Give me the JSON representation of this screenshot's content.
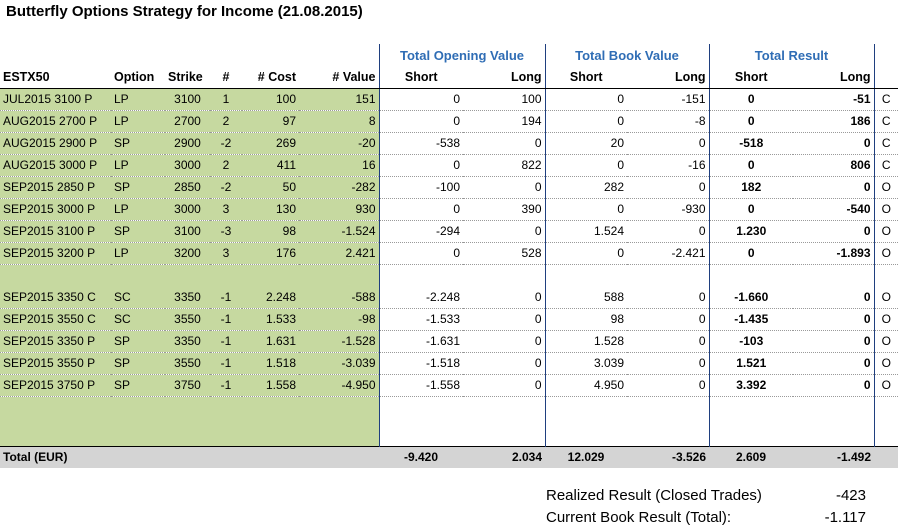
{
  "title": "Butterfly Options Strategy for Income (21.08.2015)",
  "groups": {
    "opening": "Total Opening Value",
    "book": "Total Book Value",
    "result": "Total Result"
  },
  "headers": {
    "instrument": "ESTX50",
    "option": "Option",
    "strike": "Strike",
    "count": "#",
    "cost": "# Cost",
    "value": "# Value",
    "short": "Short",
    "long": "Long"
  },
  "rows": [
    [
      "JUL2015 3100 P",
      "LP",
      "3100",
      "1",
      "100",
      "151",
      "0",
      "100",
      "0",
      "-151",
      "0",
      "-51",
      "C"
    ],
    [
      "AUG2015 2700 P",
      "LP",
      "2700",
      "2",
      "97",
      "8",
      "0",
      "194",
      "0",
      "-8",
      "0",
      "186",
      "C"
    ],
    [
      "AUG2015 2900 P",
      "SP",
      "2900",
      "-2",
      "269",
      "-20",
      "-538",
      "0",
      "20",
      "0",
      "-518",
      "0",
      "C"
    ],
    [
      "AUG2015 3000 P",
      "LP",
      "3000",
      "2",
      "411",
      "16",
      "0",
      "822",
      "0",
      "-16",
      "0",
      "806",
      "C"
    ],
    [
      "SEP2015 2850 P",
      "SP",
      "2850",
      "-2",
      "50",
      "-282",
      "-100",
      "0",
      "282",
      "0",
      "182",
      "0",
      "O"
    ],
    [
      "SEP2015 3000 P",
      "LP",
      "3000",
      "3",
      "130",
      "930",
      "0",
      "390",
      "0",
      "-930",
      "0",
      "-540",
      "O"
    ],
    [
      "SEP2015 3100 P",
      "SP",
      "3100",
      "-3",
      "98",
      "-1.524",
      "-294",
      "0",
      "1.524",
      "0",
      "1.230",
      "0",
      "O"
    ],
    [
      "SEP2015 3200 P",
      "LP",
      "3200",
      "3",
      "176",
      "2.421",
      "0",
      "528",
      "0",
      "-2.421",
      "0",
      "-1.893",
      "O"
    ],
    [
      "SEP2015 3350 C",
      "SC",
      "3350",
      "-1",
      "2.248",
      "-588",
      "-2.248",
      "0",
      "588",
      "0",
      "-1.660",
      "0",
      "O"
    ],
    [
      "SEP2015 3550 C",
      "SC",
      "3550",
      "-1",
      "1.533",
      "-98",
      "-1.533",
      "0",
      "98",
      "0",
      "-1.435",
      "0",
      "O"
    ],
    [
      "SEP2015 3350 P",
      "SP",
      "3350",
      "-1",
      "1.631",
      "-1.528",
      "-1.631",
      "0",
      "1.528",
      "0",
      "-103",
      "0",
      "O"
    ],
    [
      "SEP2015 3550 P",
      "SP",
      "3550",
      "-1",
      "1.518",
      "-3.039",
      "-1.518",
      "0",
      "3.039",
      "0",
      "1.521",
      "0",
      "O"
    ],
    [
      "SEP2015 3750 P",
      "SP",
      "3750",
      "-1",
      "1.558",
      "-4.950",
      "-1.558",
      "0",
      "4.950",
      "0",
      "3.392",
      "0",
      "O"
    ]
  ],
  "total": {
    "label": "Total (EUR)",
    "values": [
      "-9.420",
      "2.034",
      "12.029",
      "-3.526",
      "2.609",
      "-1.492"
    ]
  },
  "summary": {
    "realized_label": "Realized Result (Closed Trades)",
    "realized_value": "-423",
    "current_label": "Current Book Result (Total):",
    "current_value": "-1.117"
  }
}
